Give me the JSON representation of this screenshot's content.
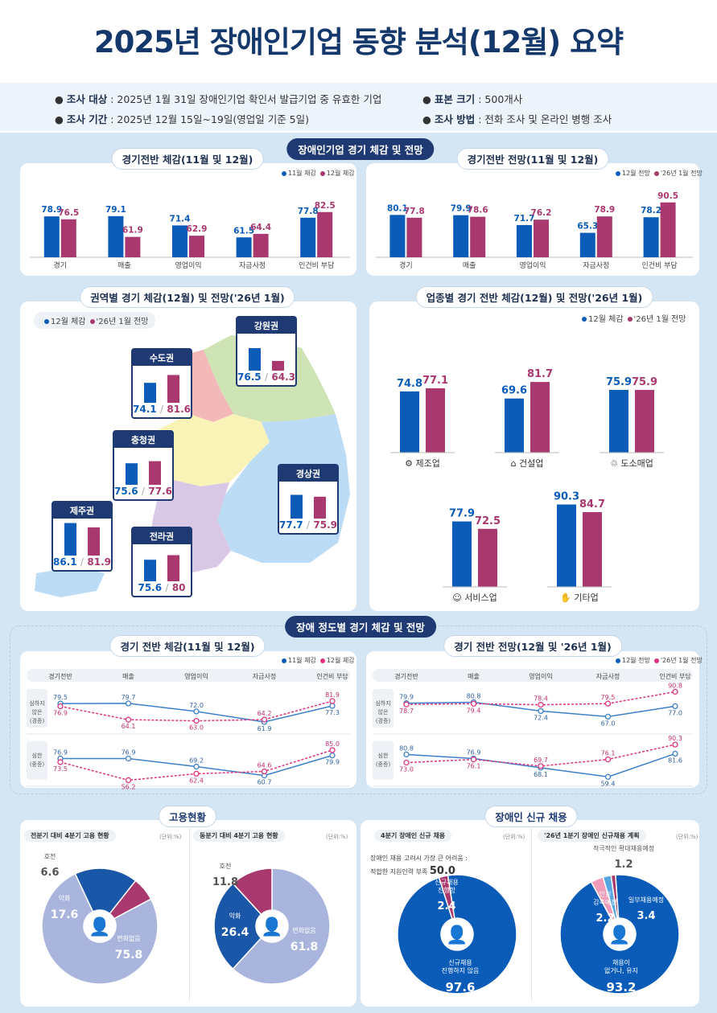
{
  "title": "2025년 장애인기업 동향 분석(12월) 요약",
  "info": {
    "target_label": "조사 대상",
    "target": " : 2025년 1월 31일 장애인기업 확인서 발급기업 중 유효한 기업",
    "sample_label": "표본 크기",
    "sample": " : 500개사",
    "period_label": "조사 기간",
    "period": " : 2025년 12월 15일~19일(영업일 기준 5일)",
    "method_label": "조사 방법",
    "method": " : 전화 조사 및 온라인 병행 조사"
  },
  "sections": {
    "s1": "장애인기업 경기 체감 및 전망",
    "s2": "장애 정도별 경기 체감 및 전망",
    "s3": "고용현황",
    "s4": "장애인 신규 채용"
  },
  "colors": {
    "blue": "#0a5cb8",
    "pink": "#a8386e",
    "navy": "#1f3a73"
  },
  "chart_data": [
    {
      "id": "c1",
      "type": "bar",
      "title": "경기전반 체감(11월 및 12월)",
      "categories": [
        "경기",
        "매출",
        "영업이익",
        "자금사정",
        "인건비 부담"
      ],
      "series": [
        {
          "name": "11월 체감",
          "values": [
            78.9,
            79.1,
            71.4,
            61.5,
            77.8
          ]
        },
        {
          "name": "12월 체감",
          "values": [
            76.5,
            61.9,
            62.9,
            64.4,
            82.5
          ]
        }
      ]
    },
    {
      "id": "c2",
      "type": "bar",
      "title": "경기전반 전망(11월 및 12월)",
      "categories": [
        "경기",
        "매출",
        "영업이익",
        "자금사정",
        "인건비 부담"
      ],
      "series": [
        {
          "name": "12월 전망",
          "values": [
            80.1,
            79.9,
            71.7,
            65.3,
            78.2
          ]
        },
        {
          "name": "'26년 1월 전망",
          "values": [
            77.8,
            78.6,
            76.2,
            78.9,
            90.5
          ]
        }
      ]
    },
    {
      "id": "c3",
      "type": "bar",
      "title": "권역별 경기 체감(12월) 및 전망('26년 1월)",
      "categories": [
        "강원권",
        "수도권",
        "충청권",
        "경상권",
        "제주권",
        "전라권"
      ],
      "series": [
        {
          "name": "12월 체감",
          "values": [
            76.5,
            74.1,
            75.6,
            77.7,
            86.1,
            75.6
          ]
        },
        {
          "name": "'26년 1월 전망",
          "values": [
            64.3,
            81.6,
            77.6,
            75.9,
            81.9,
            80.0
          ]
        }
      ]
    },
    {
      "id": "c4",
      "type": "bar",
      "title": "업종별 경기 전반 체감(12월) 및 전망('26년 1월)",
      "categories": [
        "제조업",
        "건설업",
        "도소매업",
        "서비스업",
        "기타업"
      ],
      "series": [
        {
          "name": "12월 체감",
          "values": [
            74.8,
            69.6,
            75.9,
            77.9,
            90.3
          ]
        },
        {
          "name": "'26년 1월 전망",
          "values": [
            77.1,
            81.7,
            75.9,
            72.5,
            84.7
          ]
        }
      ]
    },
    {
      "id": "c5",
      "type": "line",
      "title": "경기 전반 체감(11월 및 12월)",
      "categories": [
        "경기전반",
        "매출",
        "영업이익",
        "자금사정",
        "인건비 부담"
      ],
      "rows": [
        {
          "name": "심하지 않은 (경증)",
          "series": [
            {
              "name": "11월 체감",
              "values": [
                79.5,
                79.7,
                72.0,
                61.9,
                77.3
              ]
            },
            {
              "name": "12월 체감",
              "values": [
                76.9,
                64.1,
                63.0,
                64.2,
                81.9
              ]
            }
          ]
        },
        {
          "name": "심한 (중증)",
          "series": [
            {
              "name": "11월 체감",
              "values": [
                76.9,
                76.9,
                69.2,
                60.7,
                79.9
              ]
            },
            {
              "name": "12월 체감",
              "values": [
                73.5,
                56.2,
                62.4,
                64.6,
                85.0
              ]
            }
          ]
        }
      ]
    },
    {
      "id": "c6",
      "type": "line",
      "title": "경기 전반 전망(12월 및 '26년 1월)",
      "categories": [
        "경기전반",
        "매출",
        "영업이익",
        "자금사정",
        "인건비 부담"
      ],
      "rows": [
        {
          "name": "심하지 않은 (경증)",
          "series": [
            {
              "name": "12월 전망",
              "values": [
                79.9,
                80.8,
                72.4,
                67.0,
                77.0
              ]
            },
            {
              "name": "'26년 1월 전망",
              "values": [
                78.7,
                79.4,
                78.4,
                79.5,
                90.8
              ]
            }
          ]
        },
        {
          "name": "심한 (중증)",
          "series": [
            {
              "name": "12월 전망",
              "values": [
                80.8,
                76.9,
                68.1,
                59.4,
                81.6
              ]
            },
            {
              "name": "'26년 1월 전망",
              "values": [
                73.0,
                76.1,
                69.7,
                76.1,
                90.3
              ]
            }
          ]
        }
      ]
    },
    {
      "id": "c7",
      "type": "pie",
      "title": "전분기 대비 4분기 고용 현황",
      "unit": "(단위:%)",
      "slices": [
        {
          "label": "변화없음",
          "value": 75.8
        },
        {
          "label": "악화",
          "value": 17.6
        },
        {
          "label": "호전",
          "value": 6.6
        }
      ]
    },
    {
      "id": "c8",
      "type": "pie",
      "title": "동분기 대비 4분기 고용 현황",
      "unit": "(단위:%)",
      "slices": [
        {
          "label": "변화없음",
          "value": 61.8
        },
        {
          "label": "악화",
          "value": 26.4
        },
        {
          "label": "호전",
          "value": 11.8
        }
      ]
    },
    {
      "id": "c9",
      "type": "pie",
      "title": "4분기 장애인 신규 채용",
      "unit": "(단위:%)",
      "note": "장애인 채용 고려시 가장 큰 어려움 :",
      "note2": "적합한 지원인력 부족",
      "note_value": "50.0",
      "slices": [
        {
          "label": "신규채용 진행하지 않음",
          "value": 97.6
        },
        {
          "label": "신규채용 진행함",
          "value": 2.4
        }
      ]
    },
    {
      "id": "c10",
      "type": "pie",
      "title": "'26년 1분기 장애인 신규채용 계획",
      "unit": "(단위:%)",
      "slices": [
        {
          "label": "채용이 없거나, 유지",
          "value": 93.2
        },
        {
          "label": "일부채용예정",
          "value": 3.4
        },
        {
          "label": "인원 감축예정",
          "value": 2.2
        },
        {
          "label": "적극적인 확대채용예정",
          "value": 1.2
        }
      ]
    }
  ]
}
